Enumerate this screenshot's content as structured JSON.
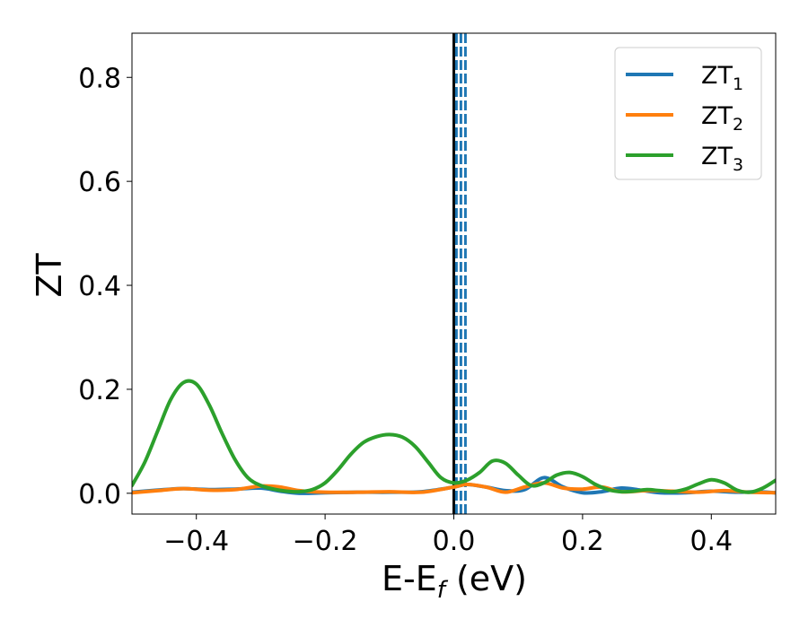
{
  "chart_data": {
    "type": "line",
    "title": "",
    "xlabel": "E-E",
    "xlabel_subscript": "f",
    "xlabel_unit": " (eV)",
    "ylabel": "ZT",
    "xlim": [
      -0.5,
      0.5
    ],
    "ylim": [
      -0.04,
      0.885
    ],
    "xticks": [
      -0.4,
      -0.2,
      0.0,
      0.2,
      0.4
    ],
    "xtick_labels": [
      "−0.4",
      "−0.2",
      "0.0",
      "0.2",
      "0.4"
    ],
    "yticks": [
      0.0,
      0.2,
      0.4,
      0.6,
      0.8
    ],
    "ytick_labels": [
      "0.0",
      "0.2",
      "0.4",
      "0.6",
      "0.8"
    ],
    "grid": false,
    "legend_position": "top-right",
    "series": [
      {
        "name": "ZT",
        "subscript": "1",
        "color": "#1f77b4",
        "x": [
          -0.5,
          -0.45,
          -0.42,
          -0.38,
          -0.34,
          -0.3,
          -0.27,
          -0.24,
          -0.2,
          -0.15,
          -0.1,
          -0.05,
          0.0,
          0.02,
          0.05,
          0.08,
          0.11,
          0.14,
          0.17,
          0.2,
          0.23,
          0.26,
          0.29,
          0.32,
          0.36,
          0.4,
          0.44,
          0.47,
          0.5
        ],
        "y": [
          0.002,
          0.007,
          0.009,
          0.007,
          0.008,
          0.01,
          0.004,
          0.0,
          0.001,
          0.002,
          0.002,
          0.003,
          0.012,
          0.017,
          0.012,
          0.005,
          0.007,
          0.03,
          0.012,
          0.001,
          0.003,
          0.01,
          0.006,
          0.001,
          0.001,
          0.004,
          0.002,
          0.003,
          0.001
        ]
      },
      {
        "name": "ZT",
        "subscript": "2",
        "color": "#ff7f0e",
        "x": [
          -0.5,
          -0.46,
          -0.42,
          -0.38,
          -0.34,
          -0.3,
          -0.27,
          -0.24,
          -0.2,
          -0.15,
          -0.1,
          -0.05,
          0.0,
          0.02,
          0.05,
          0.08,
          0.11,
          0.14,
          0.17,
          0.2,
          0.23,
          0.26,
          0.3,
          0.34,
          0.38,
          0.42,
          0.46,
          0.5
        ],
        "y": [
          0.001,
          0.005,
          0.009,
          0.006,
          0.007,
          0.014,
          0.012,
          0.005,
          0.002,
          0.002,
          0.003,
          0.002,
          0.012,
          0.017,
          0.012,
          0.002,
          0.012,
          0.02,
          0.01,
          0.008,
          0.012,
          0.003,
          0.005,
          0.004,
          0.002,
          0.005,
          0.002,
          0.001
        ]
      },
      {
        "name": "ZT",
        "subscript": "3",
        "color": "#2ca02c",
        "x": [
          -0.5,
          -0.48,
          -0.46,
          -0.44,
          -0.42,
          -0.4,
          -0.38,
          -0.36,
          -0.34,
          -0.32,
          -0.3,
          -0.28,
          -0.26,
          -0.24,
          -0.22,
          -0.2,
          -0.18,
          -0.16,
          -0.14,
          -0.12,
          -0.1,
          -0.08,
          -0.06,
          -0.04,
          -0.02,
          0.0,
          0.02,
          0.04,
          0.06,
          0.08,
          0.1,
          0.12,
          0.14,
          0.16,
          0.18,
          0.2,
          0.22,
          0.24,
          0.26,
          0.28,
          0.3,
          0.32,
          0.34,
          0.36,
          0.38,
          0.4,
          0.42,
          0.44,
          0.46,
          0.48,
          0.5
        ],
        "y": [
          0.015,
          0.06,
          0.12,
          0.18,
          0.213,
          0.21,
          0.17,
          0.115,
          0.065,
          0.03,
          0.015,
          0.008,
          0.004,
          0.003,
          0.007,
          0.02,
          0.045,
          0.075,
          0.098,
          0.109,
          0.113,
          0.108,
          0.09,
          0.06,
          0.03,
          0.02,
          0.025,
          0.04,
          0.062,
          0.058,
          0.035,
          0.015,
          0.02,
          0.035,
          0.04,
          0.032,
          0.017,
          0.007,
          0.003,
          0.004,
          0.007,
          0.005,
          0.003,
          0.008,
          0.018,
          0.026,
          0.02,
          0.006,
          0.002,
          0.01,
          0.025
        ]
      }
    ],
    "vlines": [
      {
        "x": 0.0,
        "color": "#000000",
        "style": "solid"
      },
      {
        "x": 0.004,
        "color": "#1f77b4",
        "style": "dashed"
      },
      {
        "x": 0.011,
        "color": "#1f77b4",
        "style": "dashed"
      },
      {
        "x": 0.018,
        "color": "#1f77b4",
        "style": "dashed"
      }
    ]
  }
}
